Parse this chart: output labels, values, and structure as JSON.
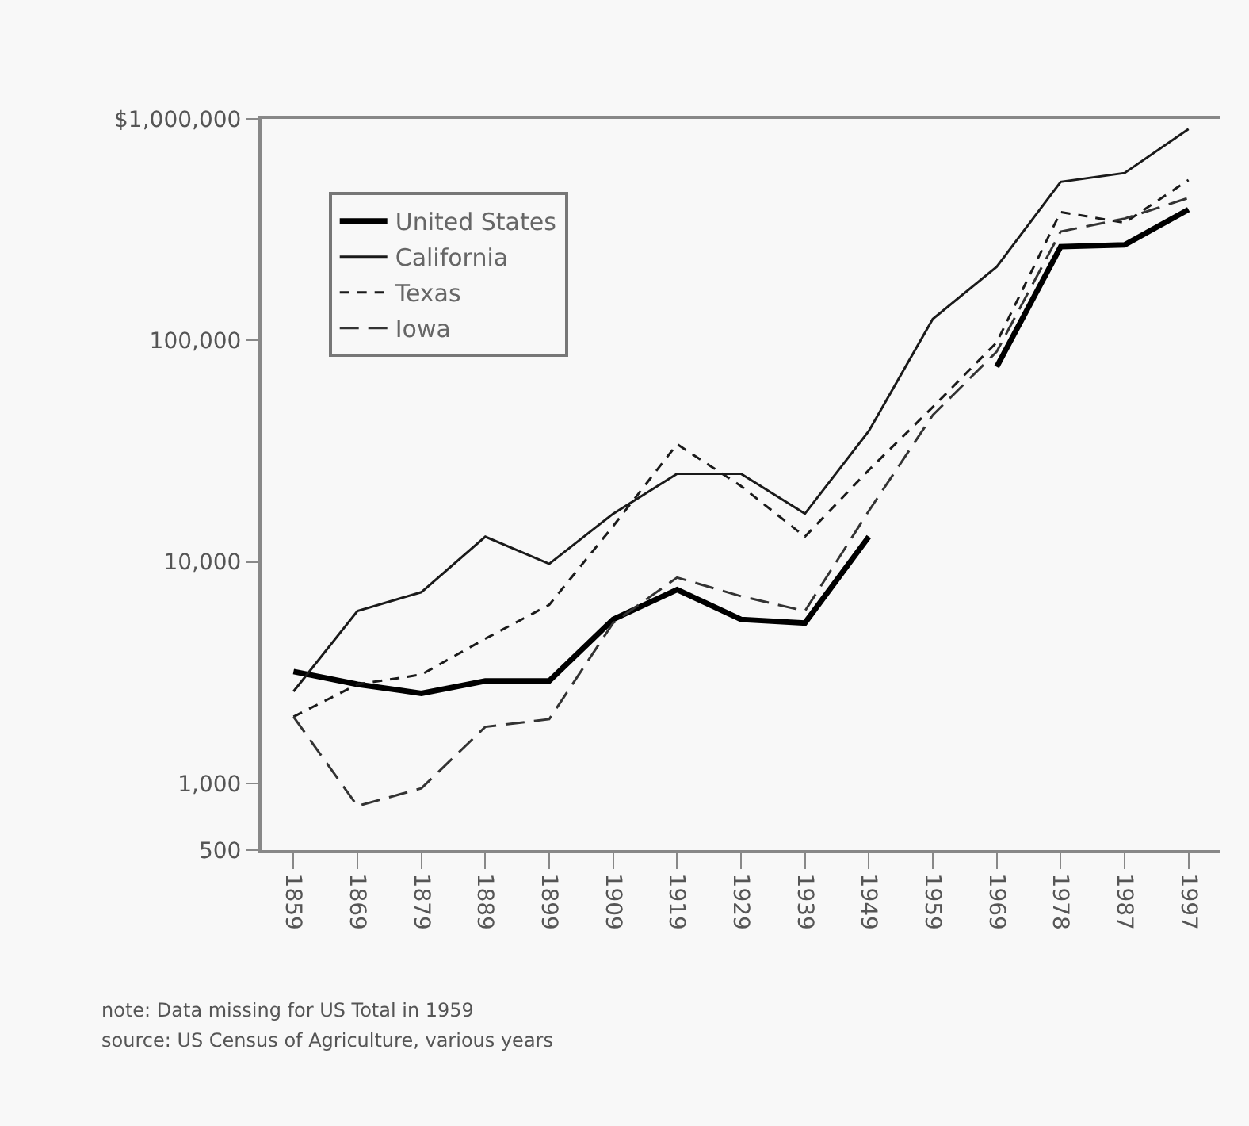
{
  "chart_data": {
    "type": "line",
    "categories": [
      "1859",
      "1869",
      "1879",
      "1889",
      "1899",
      "1909",
      "1919",
      "1929",
      "1939",
      "1949",
      "1959",
      "1969",
      "1978",
      "1987",
      "1997"
    ],
    "series": [
      {
        "name": "United States",
        "color": "#000000",
        "line_style": "solid",
        "values": [
          3200,
          2800,
          2550,
          2900,
          2900,
          5500,
          7500,
          5500,
          5300,
          13000,
          null,
          76000,
          265000,
          270000,
          390000
        ]
      },
      {
        "name": "California",
        "color": "#1a1a1a",
        "line_style": "solid",
        "values": [
          2600,
          6000,
          7300,
          13000,
          9800,
          16500,
          25000,
          25000,
          16500,
          39000,
          125000,
          215000,
          520000,
          570000,
          900000
        ]
      },
      {
        "name": "Texas",
        "color": "#1a1a1a",
        "line_style": "dashed",
        "values": [
          2000,
          2800,
          3100,
          4500,
          6400,
          14500,
          34000,
          22000,
          13000,
          26000,
          50000,
          98000,
          380000,
          340000,
          530000
        ]
      },
      {
        "name": "Iowa",
        "color": "#333333",
        "line_style": "dashed",
        "values": [
          2000,
          790,
          950,
          1800,
          1950,
          5300,
          8500,
          7000,
          6000,
          17000,
          46000,
          89000,
          310000,
          355000,
          440000
        ]
      }
    ],
    "log": "y",
    "ylim": [
      500,
      1000000
    ],
    "yticks": [
      500,
      {
        "value": 1000,
        "label": "1,000"
      },
      {
        "value": 10000,
        "label": "10,000"
      },
      {
        "value": 100000,
        "label": "100,000"
      },
      {
        "value": 1000000,
        "label": "$1,000,000"
      }
    ],
    "grid": false,
    "legend": "top left",
    "marker": "none",
    "annotations": [
      "note: Data missing for US Total in 1959",
      "source: US Census of Agriculture, various years"
    ]
  }
}
